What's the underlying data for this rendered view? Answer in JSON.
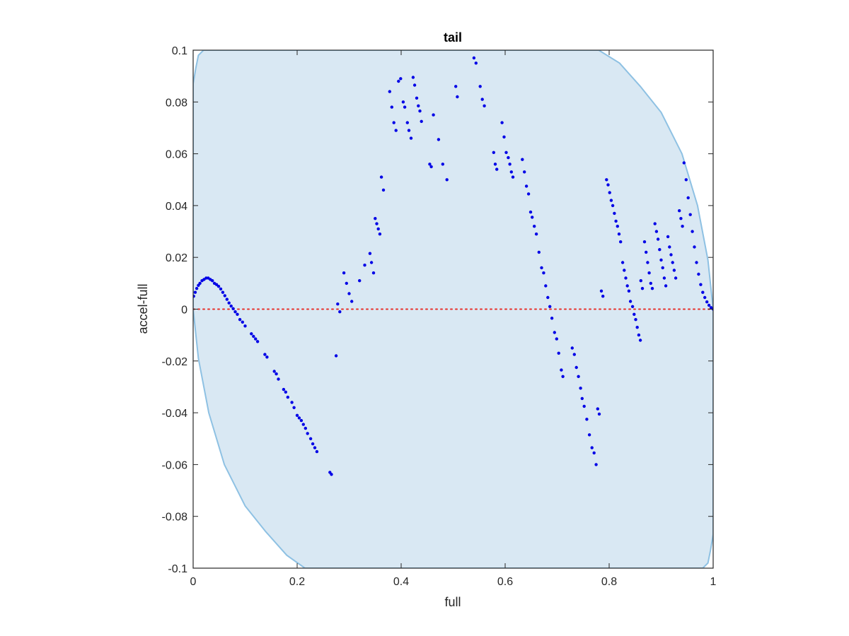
{
  "chart_data": {
    "type": "scatter",
    "title": "tail",
    "xlabel": "full",
    "ylabel": "accel-full",
    "xlim": [
      0,
      1
    ],
    "ylim": [
      -0.1,
      0.1
    ],
    "xticks": [
      "0",
      "0.2",
      "0.4",
      "0.6",
      "0.8",
      "1"
    ],
    "yticks": [
      "-0.1",
      "-0.08",
      "-0.06",
      "-0.04",
      "-0.02",
      "0",
      "0.02",
      "0.04",
      "0.06",
      "0.08",
      "0.1"
    ],
    "grid": false,
    "colors": {
      "points": "#0000e6",
      "region_fill": "#d9e8f3",
      "region_edge": "#8ec1e3",
      "zero_line": "#e8302a",
      "axes": "#262626"
    },
    "region_upper": [
      [
        0,
        0.087
      ],
      [
        0.005,
        0.093
      ],
      [
        0.01,
        0.098
      ],
      [
        0.02,
        0.1
      ],
      [
        0.78,
        0.1
      ],
      [
        0.82,
        0.095
      ],
      [
        0.86,
        0.086
      ],
      [
        0.9,
        0.076
      ],
      [
        0.94,
        0.06
      ],
      [
        0.97,
        0.04
      ],
      [
        0.99,
        0.019
      ],
      [
        1.0,
        0
      ]
    ],
    "region_lower": [
      [
        0,
        0
      ],
      [
        0.01,
        -0.019
      ],
      [
        0.03,
        -0.04
      ],
      [
        0.06,
        -0.06
      ],
      [
        0.1,
        -0.076
      ],
      [
        0.14,
        -0.086
      ],
      [
        0.18,
        -0.095
      ],
      [
        0.215,
        -0.1
      ],
      [
        0.98,
        -0.1
      ],
      [
        0.99,
        -0.098
      ],
      [
        0.995,
        -0.093
      ],
      [
        1.0,
        -0.087
      ]
    ],
    "points": [
      [
        0.001,
        0.005
      ],
      [
        0.004,
        0.0065
      ],
      [
        0.007,
        0.008
      ],
      [
        0.01,
        0.0092
      ],
      [
        0.013,
        0.01
      ],
      [
        0.017,
        0.011
      ],
      [
        0.021,
        0.0115
      ],
      [
        0.025,
        0.012
      ],
      [
        0.029,
        0.012
      ],
      [
        0.033,
        0.0115
      ],
      [
        0.037,
        0.011
      ],
      [
        0.041,
        0.01
      ],
      [
        0.045,
        0.0095
      ],
      [
        0.049,
        0.0088
      ],
      [
        0.053,
        0.0078
      ],
      [
        0.057,
        0.0065
      ],
      [
        0.061,
        0.0052
      ],
      [
        0.065,
        0.0038
      ],
      [
        0.069,
        0.0024
      ],
      [
        0.073,
        0.0012
      ],
      [
        0.077,
        0.0002
      ],
      [
        0.081,
        -0.001
      ],
      [
        0.085,
        -0.002
      ],
      [
        0.09,
        -0.004
      ],
      [
        0.095,
        -0.005
      ],
      [
        0.1,
        -0.0065
      ],
      [
        0.112,
        -0.0095
      ],
      [
        0.116,
        -0.0105
      ],
      [
        0.12,
        -0.0115
      ],
      [
        0.124,
        -0.0125
      ],
      [
        0.138,
        -0.0175
      ],
      [
        0.142,
        -0.0185
      ],
      [
        0.156,
        -0.024
      ],
      [
        0.16,
        -0.025
      ],
      [
        0.164,
        -0.027
      ],
      [
        0.174,
        -0.031
      ],
      [
        0.178,
        -0.032
      ],
      [
        0.182,
        -0.034
      ],
      [
        0.19,
        -0.036
      ],
      [
        0.194,
        -0.038
      ],
      [
        0.2,
        -0.041
      ],
      [
        0.204,
        -0.042
      ],
      [
        0.208,
        -0.043
      ],
      [
        0.212,
        -0.0445
      ],
      [
        0.216,
        -0.046
      ],
      [
        0.22,
        -0.048
      ],
      [
        0.226,
        -0.05
      ],
      [
        0.23,
        -0.052
      ],
      [
        0.234,
        -0.0535
      ],
      [
        0.238,
        -0.055
      ],
      [
        0.263,
        -0.063
      ],
      [
        0.266,
        -0.0638
      ],
      [
        0.275,
        -0.018
      ],
      [
        0.278,
        0.002
      ],
      [
        0.282,
        -0.001
      ],
      [
        0.29,
        0.014
      ],
      [
        0.295,
        0.01
      ],
      [
        0.3,
        0.006
      ],
      [
        0.305,
        0.003
      ],
      [
        0.32,
        0.011
      ],
      [
        0.33,
        0.017
      ],
      [
        0.34,
        0.0215
      ],
      [
        0.343,
        0.018
      ],
      [
        0.347,
        0.014
      ],
      [
        0.35,
        0.035
      ],
      [
        0.353,
        0.033
      ],
      [
        0.356,
        0.031
      ],
      [
        0.359,
        0.029
      ],
      [
        0.362,
        0.051
      ],
      [
        0.366,
        0.046
      ],
      [
        0.378,
        0.084
      ],
      [
        0.382,
        0.078
      ],
      [
        0.386,
        0.072
      ],
      [
        0.39,
        0.069
      ],
      [
        0.395,
        0.088
      ],
      [
        0.399,
        0.089
      ],
      [
        0.404,
        0.08
      ],
      [
        0.407,
        0.078
      ],
      [
        0.412,
        0.072
      ],
      [
        0.415,
        0.069
      ],
      [
        0.419,
        0.066
      ],
      [
        0.423,
        0.0895
      ],
      [
        0.426,
        0.0865
      ],
      [
        0.43,
        0.0815
      ],
      [
        0.433,
        0.0785
      ],
      [
        0.436,
        0.0765
      ],
      [
        0.439,
        0.0725
      ],
      [
        0.455,
        0.056
      ],
      [
        0.458,
        0.055
      ],
      [
        0.462,
        0.075
      ],
      [
        0.472,
        0.0655
      ],
      [
        0.48,
        0.056
      ],
      [
        0.488,
        0.05
      ],
      [
        0.505,
        0.086
      ],
      [
        0.508,
        0.082
      ],
      [
        0.54,
        0.097
      ],
      [
        0.544,
        0.095
      ],
      [
        0.552,
        0.086
      ],
      [
        0.556,
        0.081
      ],
      [
        0.56,
        0.0785
      ],
      [
        0.578,
        0.0605
      ],
      [
        0.581,
        0.056
      ],
      [
        0.584,
        0.054
      ],
      [
        0.594,
        0.072
      ],
      [
        0.598,
        0.0665
      ],
      [
        0.602,
        0.0605
      ],
      [
        0.606,
        0.0585
      ],
      [
        0.609,
        0.056
      ],
      [
        0.612,
        0.053
      ],
      [
        0.615,
        0.051
      ],
      [
        0.633,
        0.0578
      ],
      [
        0.637,
        0.053
      ],
      [
        0.641,
        0.0475
      ],
      [
        0.645,
        0.0445
      ],
      [
        0.649,
        0.0375
      ],
      [
        0.652,
        0.0355
      ],
      [
        0.656,
        0.032
      ],
      [
        0.66,
        0.029
      ],
      [
        0.665,
        0.022
      ],
      [
        0.67,
        0.016
      ],
      [
        0.674,
        0.014
      ],
      [
        0.678,
        0.009
      ],
      [
        0.682,
        0.0045
      ],
      [
        0.686,
        0.001
      ],
      [
        0.69,
        -0.0035
      ],
      [
        0.695,
        -0.009
      ],
      [
        0.699,
        -0.0115
      ],
      [
        0.703,
        -0.017
      ],
      [
        0.708,
        -0.0235
      ],
      [
        0.711,
        -0.026
      ],
      [
        0.729,
        -0.015
      ],
      [
        0.733,
        -0.0175
      ],
      [
        0.737,
        -0.0225
      ],
      [
        0.741,
        -0.026
      ],
      [
        0.745,
        -0.0305
      ],
      [
        0.748,
        -0.0345
      ],
      [
        0.752,
        -0.0375
      ],
      [
        0.757,
        -0.0425
      ],
      [
        0.762,
        -0.0485
      ],
      [
        0.767,
        -0.0535
      ],
      [
        0.771,
        -0.0555
      ],
      [
        0.775,
        -0.06
      ],
      [
        0.778,
        -0.0385
      ],
      [
        0.781,
        -0.0405
      ],
      [
        0.785,
        0.007
      ],
      [
        0.788,
        0.005
      ],
      [
        0.795,
        0.05
      ],
      [
        0.798,
        0.048
      ],
      [
        0.801,
        0.045
      ],
      [
        0.804,
        0.042
      ],
      [
        0.807,
        0.04
      ],
      [
        0.81,
        0.037
      ],
      [
        0.813,
        0.034
      ],
      [
        0.816,
        0.032
      ],
      [
        0.819,
        0.029
      ],
      [
        0.822,
        0.026
      ],
      [
        0.826,
        0.018
      ],
      [
        0.829,
        0.015
      ],
      [
        0.832,
        0.012
      ],
      [
        0.835,
        0.009
      ],
      [
        0.838,
        0.007
      ],
      [
        0.841,
        0.003
      ],
      [
        0.845,
        0.001
      ],
      [
        0.848,
        -0.002
      ],
      [
        0.851,
        -0.004
      ],
      [
        0.854,
        -0.007
      ],
      [
        0.857,
        -0.01
      ],
      [
        0.86,
        -0.012
      ],
      [
        0.861,
        0.011
      ],
      [
        0.864,
        0.008
      ],
      [
        0.868,
        0.026
      ],
      [
        0.871,
        0.022
      ],
      [
        0.874,
        0.018
      ],
      [
        0.877,
        0.014
      ],
      [
        0.88,
        0.01
      ],
      [
        0.883,
        0.008
      ],
      [
        0.888,
        0.033
      ],
      [
        0.891,
        0.03
      ],
      [
        0.894,
        0.027
      ],
      [
        0.897,
        0.023
      ],
      [
        0.9,
        0.019
      ],
      [
        0.903,
        0.016
      ],
      [
        0.906,
        0.012
      ],
      [
        0.909,
        0.009
      ],
      [
        0.913,
        0.028
      ],
      [
        0.916,
        0.024
      ],
      [
        0.919,
        0.021
      ],
      [
        0.922,
        0.018
      ],
      [
        0.925,
        0.015
      ],
      [
        0.928,
        0.012
      ],
      [
        0.935,
        0.038
      ],
      [
        0.938,
        0.035
      ],
      [
        0.941,
        0.032
      ],
      [
        0.944,
        0.0565
      ],
      [
        0.948,
        0.05
      ],
      [
        0.952,
        0.043
      ],
      [
        0.956,
        0.0365
      ],
      [
        0.96,
        0.03
      ],
      [
        0.964,
        0.024
      ],
      [
        0.968,
        0.018
      ],
      [
        0.972,
        0.0135
      ],
      [
        0.976,
        0.0095
      ],
      [
        0.98,
        0.0065
      ],
      [
        0.984,
        0.0045
      ],
      [
        0.988,
        0.0028
      ],
      [
        0.992,
        0.0015
      ],
      [
        0.996,
        0.0006
      ],
      [
        1.0,
        0
      ]
    ]
  }
}
